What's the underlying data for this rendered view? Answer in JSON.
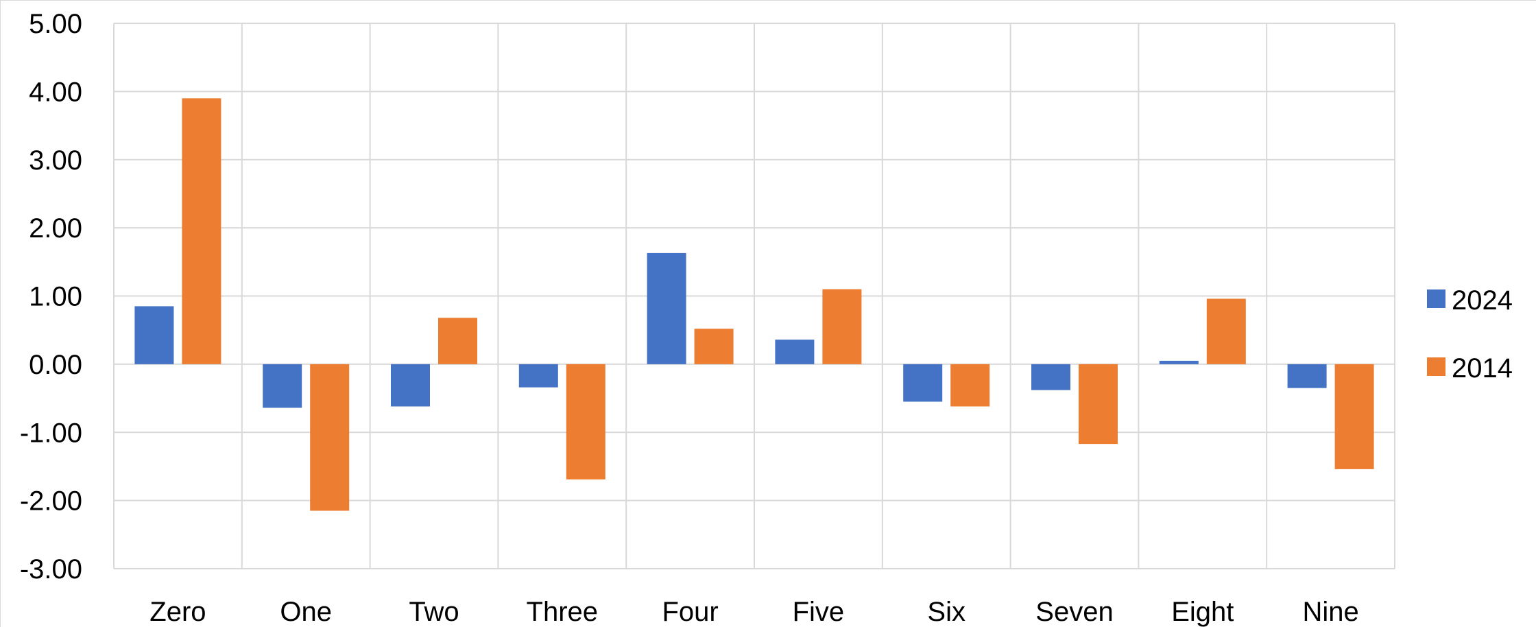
{
  "chart_data": {
    "type": "bar",
    "title": "",
    "xlabel": "",
    "ylabel": "",
    "categories": [
      "Zero",
      "One",
      "Two",
      "Three",
      "Four",
      "Five",
      "Six",
      "Seven",
      "Eight",
      "Nine"
    ],
    "series": [
      {
        "name": "2024",
        "color": "#4472C4",
        "values": [
          0.85,
          -0.64,
          -0.62,
          -0.34,
          1.63,
          0.36,
          -0.55,
          -0.38,
          0.05,
          -0.35
        ]
      },
      {
        "name": "2014",
        "color": "#ED7D31",
        "values": [
          3.9,
          -2.15,
          0.68,
          -1.69,
          0.52,
          1.1,
          -0.62,
          -1.17,
          0.96,
          -1.54
        ]
      }
    ],
    "ylim": [
      -3,
      5
    ],
    "yticks": [
      "5.00",
      "4.00",
      "3.00",
      "2.00",
      "1.00",
      "0.00",
      "-1.00",
      "-2.00",
      "-3.00"
    ],
    "grid": true,
    "legend_position": "right"
  }
}
